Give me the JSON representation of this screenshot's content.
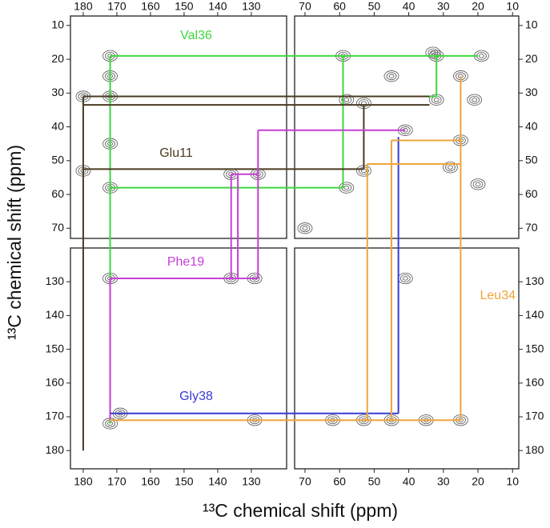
{
  "chart_data": {
    "type": "contour",
    "xlabel": "¹³C chemical shift (ppm)",
    "ylabel": "¹³C chemical shift (ppm)",
    "xlim": [
      [
        183.8,
        119.5
      ],
      [
        73,
        8.2
      ]
    ],
    "ylim": [
      [
        7.2,
        73
      ],
      [
        120,
        185.4
      ]
    ],
    "xticks": [
      [
        180,
        170,
        160,
        150,
        140,
        130
      ],
      [
        70,
        60,
        50,
        40,
        30,
        20,
        10
      ]
    ],
    "yticks": [
      [
        10,
        20,
        30,
        40,
        50,
        60,
        70
      ],
      [
        130,
        140,
        150,
        160,
        170,
        180
      ]
    ],
    "peaks": {
      "x": [
        19,
        25,
        32,
        41,
        53,
        58,
        172,
        172,
        172,
        180,
        180,
        59,
        32,
        53,
        58,
        25,
        45,
        21,
        20,
        129,
        136,
        128,
        136,
        172,
        41,
        172,
        169,
        53,
        45,
        25,
        35,
        129,
        70,
        33,
        62,
        172,
        172,
        28
      ],
      "y": [
        19,
        25,
        32,
        41,
        53,
        58,
        19,
        31,
        58,
        31,
        53,
        19,
        19,
        33,
        32,
        44,
        25,
        32,
        57,
        129,
        129,
        54,
        54,
        129,
        129,
        172,
        169,
        171,
        171,
        171,
        171,
        171,
        70,
        18,
        171,
        25,
        45,
        52
      ]
    },
    "series": [
      {
        "name": "Val36",
        "color": "#3fd63f",
        "segments": [
          [
            172,
            19,
            20,
            19
          ],
          [
            172,
            19,
            172,
            172
          ],
          [
            172,
            58,
            59,
            58
          ],
          [
            59,
            19,
            59,
            58
          ],
          [
            172,
            31,
            32,
            31
          ],
          [
            32,
            19,
            32,
            31
          ]
        ]
      },
      {
        "name": "Glu11",
        "color": "#4a3b22",
        "segments": [
          [
            180,
            31,
            34,
            31
          ],
          [
            180,
            33.5,
            34,
            33.5
          ],
          [
            180,
            52.5,
            53,
            52.5
          ],
          [
            53,
            33.5,
            53,
            52.5
          ],
          [
            180,
            31,
            180,
            180
          ]
        ]
      },
      {
        "name": "Phe19",
        "color": "#c63fd6",
        "segments": [
          [
            172,
            129,
            128,
            129
          ],
          [
            172,
            129,
            172,
            171
          ],
          [
            128,
            41,
            128,
            129
          ],
          [
            128,
            41,
            41,
            41
          ],
          [
            136,
            54,
            128,
            54
          ],
          [
            136,
            54,
            136,
            129
          ],
          [
            134,
            54,
            134,
            129
          ]
        ]
      },
      {
        "name": "Gly38",
        "color": "#3a3ad6",
        "segments": [
          [
            172,
            169,
            43,
            169
          ],
          [
            43,
            43,
            43,
            169
          ]
        ]
      },
      {
        "name": "Leu34",
        "color": "#eea53a",
        "segments": [
          [
            172,
            171,
            25,
            171
          ],
          [
            25,
            25,
            25,
            171
          ],
          [
            52,
            51,
            25,
            51
          ],
          [
            45,
            44,
            25,
            44
          ],
          [
            52,
            51,
            52,
            171
          ],
          [
            45,
            44,
            45,
            171
          ]
        ]
      }
    ]
  }
}
